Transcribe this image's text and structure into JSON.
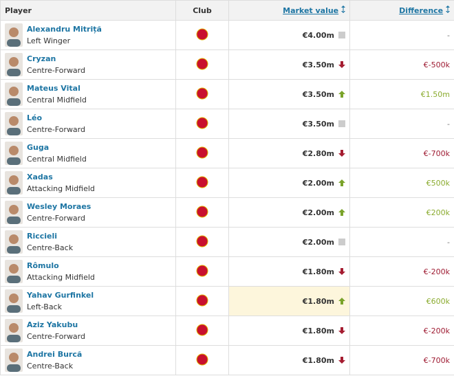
{
  "header": {
    "player": "Player",
    "club": "Club",
    "market_value": "Market value",
    "difference": "Difference"
  },
  "table": {
    "rows": [
      {
        "name": "Alexandru Mitriță",
        "position": "Left Winger",
        "market_value": "€4.00m",
        "trend": "none",
        "difference": "-"
      },
      {
        "name": "Cryzan",
        "position": "Centre-Forward",
        "market_value": "€3.50m",
        "trend": "down",
        "difference": "€-500k"
      },
      {
        "name": "Mateus Vital",
        "position": "Central Midfield",
        "market_value": "€3.50m",
        "trend": "up",
        "difference": "€1.50m"
      },
      {
        "name": "Léo",
        "position": "Centre-Forward",
        "market_value": "€3.50m",
        "trend": "none",
        "difference": "-"
      },
      {
        "name": "Guga",
        "position": "Central Midfield",
        "market_value": "€2.80m",
        "trend": "down",
        "difference": "€-700k"
      },
      {
        "name": "Xadas",
        "position": "Attacking Midfield",
        "market_value": "€2.00m",
        "trend": "up",
        "difference": "€500k"
      },
      {
        "name": "Wesley Moraes",
        "position": "Centre-Forward",
        "market_value": "€2.00m",
        "trend": "up",
        "difference": "€200k"
      },
      {
        "name": "Riccieli",
        "position": "Centre-Back",
        "market_value": "€2.00m",
        "trend": "none",
        "difference": "-"
      },
      {
        "name": "Rômulo",
        "position": "Attacking Midfield",
        "market_value": "€1.80m",
        "trend": "down",
        "difference": "€-200k"
      },
      {
        "name": "Yahav Gurfinkel",
        "position": "Left-Back",
        "market_value": "€1.80m",
        "trend": "up",
        "difference": "€600k",
        "highlighted": true
      },
      {
        "name": "Aziz Yakubu",
        "position": "Centre-Forward",
        "market_value": "€1.80m",
        "trend": "down",
        "difference": "€-200k"
      },
      {
        "name": "Andrei Burcă",
        "position": "Centre-Back",
        "market_value": "€1.80m",
        "trend": "down",
        "difference": "€-700k"
      }
    ]
  }
}
